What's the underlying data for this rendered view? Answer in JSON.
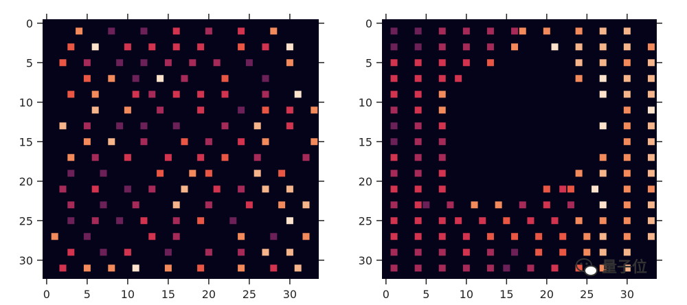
{
  "watermark": {
    "text": "量子位",
    "icon": "wechat-icon"
  },
  "colors": {
    "background": "#050319",
    "palette": [
      "#3e1a4a",
      "#6b2157",
      "#a52a58",
      "#d2334f",
      "#e95744",
      "#f38a5b",
      "#f6b48a",
      "#fde3cc"
    ]
  },
  "chart_data": [
    {
      "type": "heatmap",
      "title": "",
      "description": "scattered random cells",
      "xlim": [
        -0.5,
        34.5
      ],
      "ylim": [
        -0.5,
        32.5
      ],
      "xticks": [
        0,
        5,
        10,
        15,
        20,
        25,
        30
      ],
      "yticks": [
        0,
        5,
        10,
        15,
        20,
        25,
        30
      ],
      "xtick_labels": [
        "0",
        "5",
        "10",
        "15",
        "20",
        "25",
        "30"
      ],
      "ytick_labels": [
        "0",
        "5",
        "10",
        "15",
        "20",
        "25",
        "30"
      ],
      "cells": [
        [
          1,
          4,
          5
        ],
        [
          1,
          8,
          1
        ],
        [
          1,
          12,
          1
        ],
        [
          1,
          16,
          3
        ],
        [
          1,
          20,
          2
        ],
        [
          1,
          24,
          3
        ],
        [
          1,
          28,
          5
        ],
        [
          3,
          3,
          4
        ],
        [
          3,
          6,
          7
        ],
        [
          3,
          10,
          3
        ],
        [
          3,
          13,
          3
        ],
        [
          3,
          16,
          3
        ],
        [
          3,
          19,
          3
        ],
        [
          3,
          24,
          4
        ],
        [
          3,
          27,
          3
        ],
        [
          3,
          30,
          7
        ],
        [
          5,
          2,
          4
        ],
        [
          5,
          5,
          2
        ],
        [
          5,
          9,
          1
        ],
        [
          5,
          12,
          1
        ],
        [
          5,
          15,
          2
        ],
        [
          5,
          18,
          2
        ],
        [
          5,
          21,
          2
        ],
        [
          5,
          25,
          1
        ],
        [
          5,
          30,
          5
        ],
        [
          7,
          5,
          4
        ],
        [
          7,
          8,
          5
        ],
        [
          7,
          11,
          1
        ],
        [
          7,
          14,
          7
        ],
        [
          7,
          17,
          2
        ],
        [
          7,
          22,
          4
        ],
        [
          7,
          27,
          1
        ],
        [
          9,
          3,
          4
        ],
        [
          9,
          6,
          5
        ],
        [
          9,
          11,
          3
        ],
        [
          9,
          13,
          2
        ],
        [
          9,
          16,
          3
        ],
        [
          9,
          19,
          3
        ],
        [
          9,
          22,
          3
        ],
        [
          9,
          27,
          2
        ],
        [
          9,
          31,
          7
        ],
        [
          11,
          6,
          6
        ],
        [
          11,
          10,
          5
        ],
        [
          11,
          14,
          2
        ],
        [
          11,
          19,
          3
        ],
        [
          11,
          24,
          1
        ],
        [
          11,
          27,
          4
        ],
        [
          11,
          30,
          3
        ],
        [
          11,
          33,
          5
        ],
        [
          13,
          2,
          6
        ],
        [
          13,
          5,
          2
        ],
        [
          13,
          9,
          1
        ],
        [
          13,
          12,
          1
        ],
        [
          13,
          16,
          1
        ],
        [
          13,
          22,
          2
        ],
        [
          13,
          26,
          6
        ],
        [
          13,
          30,
          3
        ],
        [
          15,
          5,
          5
        ],
        [
          15,
          8,
          6
        ],
        [
          15,
          12,
          2
        ],
        [
          15,
          17,
          4
        ],
        [
          15,
          20,
          2
        ],
        [
          15,
          24,
          3
        ],
        [
          15,
          27,
          5
        ],
        [
          15,
          33,
          5
        ],
        [
          17,
          3,
          5
        ],
        [
          17,
          6,
          2
        ],
        [
          17,
          10,
          3
        ],
        [
          17,
          15,
          3
        ],
        [
          17,
          19,
          3
        ],
        [
          17,
          22,
          4
        ],
        [
          17,
          26,
          2
        ],
        [
          17,
          32,
          2
        ],
        [
          19,
          3,
          1
        ],
        [
          19,
          7,
          1
        ],
        [
          19,
          14,
          4
        ],
        [
          19,
          18,
          5
        ],
        [
          19,
          20,
          4
        ],
        [
          19,
          26,
          6
        ],
        [
          19,
          29,
          4
        ],
        [
          21,
          2,
          2
        ],
        [
          21,
          6,
          3
        ],
        [
          21,
          10,
          1
        ],
        [
          21,
          13,
          2
        ],
        [
          21,
          17,
          6
        ],
        [
          21,
          21,
          3
        ],
        [
          21,
          24,
          2
        ],
        [
          21,
          27,
          6
        ],
        [
          21,
          30,
          6
        ],
        [
          23,
          3,
          2
        ],
        [
          23,
          7,
          1
        ],
        [
          23,
          11,
          2
        ],
        [
          23,
          16,
          6
        ],
        [
          23,
          20,
          2
        ],
        [
          23,
          25,
          3
        ],
        [
          23,
          29,
          5
        ],
        [
          23,
          32,
          6
        ],
        [
          25,
          3,
          1
        ],
        [
          25,
          6,
          2
        ],
        [
          25,
          9,
          1
        ],
        [
          25,
          12,
          3
        ],
        [
          25,
          16,
          2
        ],
        [
          25,
          19,
          4
        ],
        [
          25,
          23,
          1
        ],
        [
          25,
          30,
          7
        ],
        [
          27,
          1,
          5
        ],
        [
          27,
          5,
          1
        ],
        [
          27,
          13,
          3
        ],
        [
          27,
          16,
          2
        ],
        [
          27,
          24,
          5
        ],
        [
          27,
          28,
          1
        ],
        [
          27,
          32,
          5
        ],
        [
          29,
          3,
          3
        ],
        [
          29,
          7,
          1
        ],
        [
          29,
          10,
          3
        ],
        [
          29,
          15,
          1
        ],
        [
          29,
          20,
          2
        ],
        [
          29,
          24,
          2
        ],
        [
          29,
          27,
          6
        ],
        [
          29,
          30,
          6
        ],
        [
          31,
          2,
          3
        ],
        [
          31,
          5,
          5
        ],
        [
          31,
          8,
          5
        ],
        [
          31,
          11,
          7
        ],
        [
          31,
          15,
          5
        ],
        [
          31,
          19,
          4
        ],
        [
          31,
          24,
          5
        ],
        [
          31,
          28,
          3
        ],
        [
          31,
          31,
          6
        ]
      ]
    },
    {
      "type": "heatmap",
      "title": "",
      "description": "cells arranged as a border with an empty central region",
      "xlim": [
        -0.5,
        34.5
      ],
      "ylim": [
        -0.5,
        32.5
      ],
      "xticks": [
        0,
        5,
        10,
        15,
        20,
        25,
        30
      ],
      "yticks": [
        0,
        5,
        10,
        15,
        20,
        25,
        30
      ],
      "xtick_labels": [
        "0",
        "5",
        "10",
        "15",
        "20",
        "25",
        "30"
      ],
      "ytick_labels": [
        "0",
        "5",
        "10",
        "15",
        "20",
        "25",
        "30"
      ],
      "cells": [
        [
          1,
          1,
          1
        ],
        [
          1,
          4,
          1
        ],
        [
          1,
          7,
          2
        ],
        [
          1,
          10,
          2
        ],
        [
          1,
          13,
          2
        ],
        [
          1,
          16,
          2
        ],
        [
          1,
          17,
          5
        ],
        [
          1,
          20,
          5
        ],
        [
          1,
          24,
          5
        ],
        [
          1,
          27,
          6
        ],
        [
          1,
          30,
          6
        ],
        [
          3,
          1,
          1
        ],
        [
          3,
          4,
          1
        ],
        [
          3,
          7,
          2
        ],
        [
          3,
          10,
          2
        ],
        [
          3,
          13,
          2
        ],
        [
          3,
          16,
          5
        ],
        [
          3,
          21,
          7
        ],
        [
          3,
          24,
          6
        ],
        [
          3,
          27,
          6
        ],
        [
          3,
          30,
          6
        ],
        [
          3,
          33,
          5
        ],
        [
          5,
          1,
          3
        ],
        [
          5,
          4,
          3
        ],
        [
          5,
          7,
          3
        ],
        [
          5,
          10,
          3
        ],
        [
          5,
          13,
          4
        ],
        [
          5,
          24,
          6
        ],
        [
          5,
          27,
          6
        ],
        [
          5,
          30,
          5
        ],
        [
          5,
          33,
          6
        ],
        [
          7,
          1,
          3
        ],
        [
          7,
          4,
          3
        ],
        [
          7,
          7,
          3
        ],
        [
          7,
          9,
          3
        ],
        [
          7,
          24,
          5
        ],
        [
          7,
          27,
          7
        ],
        [
          7,
          30,
          6
        ],
        [
          7,
          33,
          6
        ],
        [
          9,
          1,
          3
        ],
        [
          9,
          4,
          3
        ],
        [
          9,
          7,
          5
        ],
        [
          9,
          27,
          7
        ],
        [
          9,
          30,
          6
        ],
        [
          9,
          33,
          6
        ],
        [
          11,
          1,
          2
        ],
        [
          11,
          4,
          3
        ],
        [
          11,
          7,
          5
        ],
        [
          11,
          30,
          5
        ],
        [
          11,
          33,
          7
        ],
        [
          13,
          1,
          1
        ],
        [
          13,
          4,
          2
        ],
        [
          13,
          7,
          3
        ],
        [
          13,
          27,
          7
        ],
        [
          13,
          30,
          5
        ],
        [
          13,
          33,
          6
        ],
        [
          15,
          1,
          1
        ],
        [
          15,
          4,
          2
        ],
        [
          15,
          7,
          2
        ],
        [
          15,
          30,
          5
        ],
        [
          15,
          33,
          6
        ],
        [
          17,
          1,
          3
        ],
        [
          17,
          4,
          2
        ],
        [
          17,
          7,
          2
        ],
        [
          17,
          27,
          5
        ],
        [
          17,
          30,
          5
        ],
        [
          17,
          33,
          6
        ],
        [
          19,
          1,
          2
        ],
        [
          19,
          4,
          2
        ],
        [
          19,
          7,
          3
        ],
        [
          19,
          24,
          5
        ],
        [
          19,
          27,
          6
        ],
        [
          19,
          30,
          5
        ],
        [
          19,
          33,
          6
        ],
        [
          21,
          1,
          3
        ],
        [
          21,
          4,
          3
        ],
        [
          21,
          7,
          3
        ],
        [
          21,
          20,
          4
        ],
        [
          21,
          22,
          3
        ],
        [
          21,
          23,
          4
        ],
        [
          21,
          26,
          7
        ],
        [
          21,
          30,
          5
        ],
        [
          21,
          33,
          5
        ],
        [
          23,
          1,
          2
        ],
        [
          23,
          4,
          3
        ],
        [
          23,
          5,
          1
        ],
        [
          23,
          8,
          2
        ],
        [
          23,
          11,
          5
        ],
        [
          23,
          14,
          5
        ],
        [
          23,
          17,
          2
        ],
        [
          23,
          20,
          3
        ],
        [
          23,
          23,
          2
        ],
        [
          23,
          27,
          7
        ],
        [
          23,
          30,
          5
        ],
        [
          23,
          33,
          6
        ],
        [
          25,
          1,
          3
        ],
        [
          25,
          4,
          3
        ],
        [
          25,
          7,
          3
        ],
        [
          25,
          9,
          3
        ],
        [
          25,
          12,
          3
        ],
        [
          25,
          15,
          4
        ],
        [
          25,
          18,
          3
        ],
        [
          25,
          21,
          3
        ],
        [
          25,
          24,
          5
        ],
        [
          25,
          27,
          5
        ],
        [
          25,
          30,
          5
        ],
        [
          25,
          33,
          6
        ],
        [
          27,
          1,
          3
        ],
        [
          27,
          4,
          3
        ],
        [
          27,
          7,
          3
        ],
        [
          27,
          10,
          3
        ],
        [
          27,
          13,
          4
        ],
        [
          27,
          16,
          4
        ],
        [
          27,
          19,
          4
        ],
        [
          27,
          22,
          4
        ],
        [
          27,
          25,
          5
        ],
        [
          27,
          27,
          6
        ],
        [
          27,
          30,
          5
        ],
        [
          27,
          33,
          6
        ],
        [
          29,
          1,
          2
        ],
        [
          29,
          4,
          2
        ],
        [
          29,
          7,
          2
        ],
        [
          29,
          10,
          3
        ],
        [
          29,
          13,
          2
        ],
        [
          29,
          16,
          1
        ],
        [
          29,
          19,
          4
        ],
        [
          29,
          22,
          4
        ],
        [
          29,
          25,
          5
        ],
        [
          29,
          27,
          6
        ],
        [
          29,
          30,
          6
        ],
        [
          31,
          1,
          2
        ],
        [
          31,
          4,
          2
        ],
        [
          31,
          7,
          2
        ],
        [
          31,
          10,
          2
        ],
        [
          31,
          13,
          2
        ],
        [
          31,
          15,
          1
        ],
        [
          31,
          18,
          2
        ],
        [
          31,
          21,
          3
        ],
        [
          31,
          24,
          4
        ],
        [
          31,
          27,
          5
        ],
        [
          31,
          30,
          6
        ]
      ]
    }
  ]
}
